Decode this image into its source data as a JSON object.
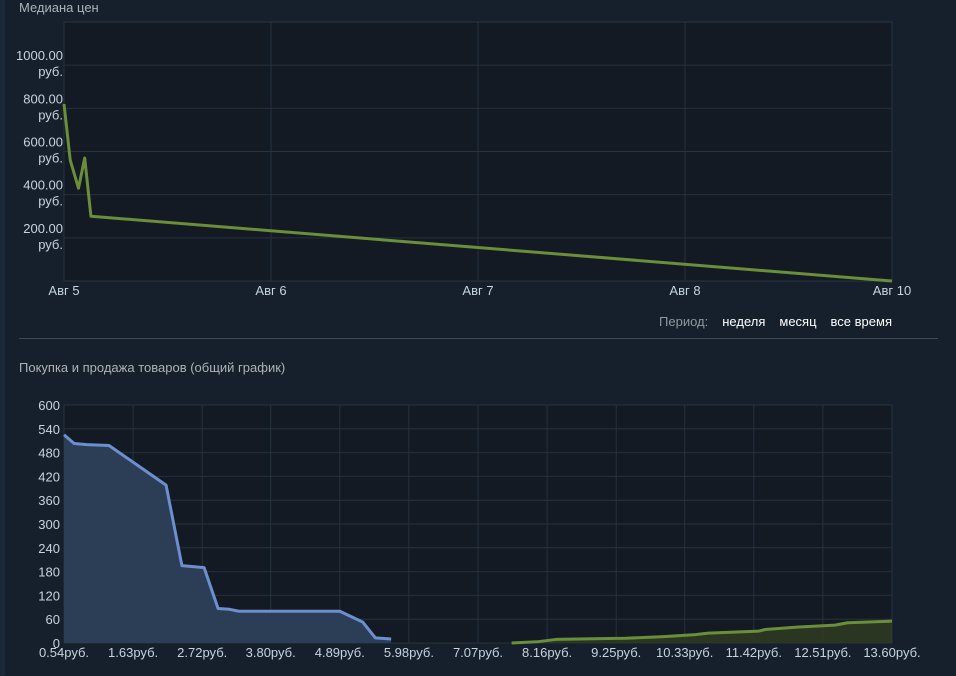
{
  "median_section": {
    "title": "Медиана цен",
    "period_label": "Период:",
    "period_options": [
      "неделя",
      "месяц",
      "все время"
    ]
  },
  "orders_section": {
    "title": "Покупка и продажа товаров (общий график)"
  },
  "colors": {
    "line_green": "#6b8e3a",
    "buy_blue": "#6c8fd0",
    "buy_fill": "#2d3f5a",
    "sell_fill": "#2e3a22",
    "grid": "#26323f"
  },
  "chart_data": [
    {
      "type": "line",
      "title": "Медиана цен",
      "xlabel": "",
      "ylabel": "",
      "x_tick_labels": [
        "Авг 5",
        "Авг 6",
        "Авг 7",
        "Авг 8",
        "Авг 10"
      ],
      "x_ticks": [
        0,
        1,
        2,
        3,
        4
      ],
      "y_tick_labels": [
        [
          "1000.00",
          "руб."
        ],
        [
          "800.00",
          "руб."
        ],
        [
          "600.00",
          "руб."
        ],
        [
          "400.00",
          "руб."
        ],
        [
          "200.00",
          "руб."
        ]
      ],
      "y_ticks": [
        1000,
        800,
        600,
        400,
        200
      ],
      "ylim": [
        0,
        1200
      ],
      "xlim": [
        0,
        4
      ],
      "grid": true,
      "series": [
        {
          "x": [
            0,
            0.03,
            0.07,
            0.1,
            0.13,
            4
          ],
          "y": [
            820,
            560,
            430,
            570,
            300,
            0
          ]
        }
      ]
    },
    {
      "type": "area",
      "title": "Покупка и продажа товаров (общий график)",
      "xlabel": "",
      "ylabel": "",
      "x_tick_labels": [
        "0.54руб.",
        "1.63руб.",
        "2.72руб.",
        "3.80руб.",
        "4.89руб.",
        "5.98руб.",
        "7.07руб.",
        "8.16руб.",
        "9.25руб.",
        "10.33руб.",
        "11.42руб.",
        "12.51руб.",
        "13.60руб."
      ],
      "x_ticks": [
        0.54,
        1.63,
        2.72,
        3.8,
        4.89,
        5.98,
        7.07,
        8.16,
        9.25,
        10.33,
        11.42,
        12.51,
        13.6
      ],
      "y_tick_labels": [
        "600",
        "540",
        "480",
        "420",
        "360",
        "300",
        "240",
        "180",
        "120",
        "60",
        "0"
      ],
      "y_ticks": [
        600,
        540,
        480,
        420,
        360,
        300,
        240,
        180,
        120,
        60,
        0
      ],
      "xlim": [
        0.54,
        13.6
      ],
      "ylim": [
        0,
        600
      ],
      "grid": true,
      "series": [
        {
          "kind": "buy",
          "x": [
            0.54,
            0.7,
            0.9,
            1.25,
            2.15,
            2.4,
            2.75,
            2.97,
            3.15,
            3.3,
            4.89,
            5.25,
            5.45,
            5.7
          ],
          "y": [
            525,
            503,
            500,
            498,
            398,
            195,
            190,
            87,
            85,
            80,
            80,
            53,
            13,
            10
          ]
        },
        {
          "kind": "sell",
          "x": [
            7.6,
            8.0,
            8.3,
            9.0,
            9.4,
            10.0,
            10.5,
            10.7,
            11.5,
            11.6,
            12.1,
            12.7,
            12.9,
            13.6
          ],
          "y": [
            0,
            3,
            9,
            11,
            12,
            16,
            21,
            25,
            30,
            34,
            40,
            45,
            51,
            55
          ]
        }
      ]
    }
  ]
}
